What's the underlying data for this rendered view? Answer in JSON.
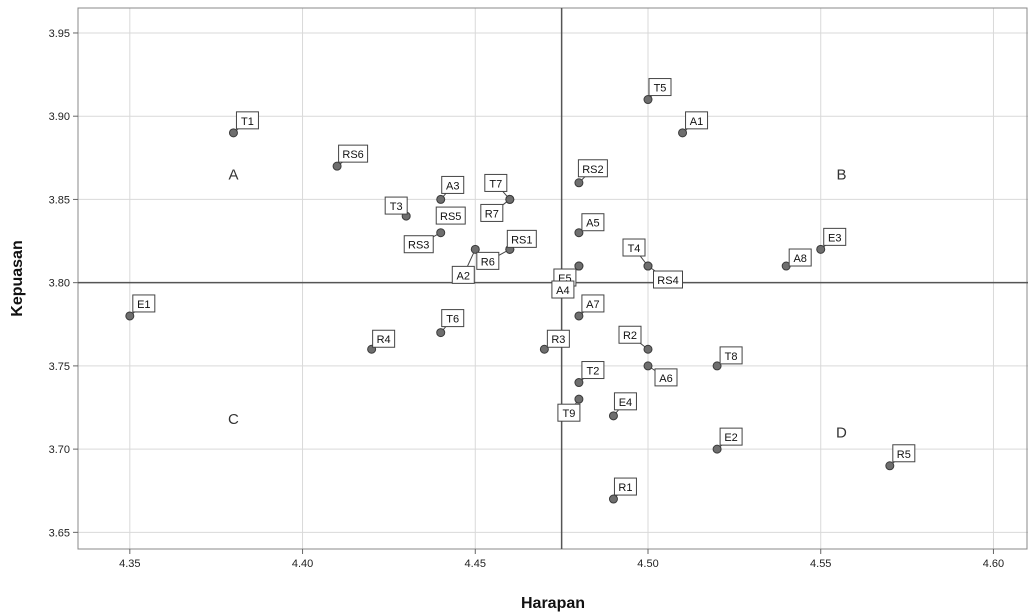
{
  "chart_data": {
    "type": "scatter",
    "xlabel": "Harapan",
    "ylabel": "Kepuasan",
    "xlim": [
      4.335,
      4.61
    ],
    "ylim": [
      3.64,
      3.965
    ],
    "xticks": [
      "4.35",
      "4.40",
      "4.45",
      "4.50",
      "4.55",
      "4.60"
    ],
    "yticks": [
      "3.65",
      "3.70",
      "3.75",
      "3.80",
      "3.85",
      "3.90",
      "3.95"
    ],
    "grid": true,
    "reference_lines": {
      "x": 4.475,
      "y": 3.8
    },
    "quadrant_labels": [
      {
        "text": "A",
        "x": 4.38,
        "y": 3.865
      },
      {
        "text": "B",
        "x": 4.556,
        "y": 3.865
      },
      {
        "text": "C",
        "x": 4.38,
        "y": 3.718
      },
      {
        "text": "D",
        "x": 4.556,
        "y": 3.71
      }
    ],
    "colors": {
      "point": "#6e6e6e",
      "point_edge": "#3a3a3a",
      "grid": "#d9d9d9",
      "refline": "#555555",
      "label_border": "#444444"
    },
    "points": [
      {
        "label": "T1",
        "x": 4.38,
        "y": 3.89
      },
      {
        "label": "RS6",
        "x": 4.41,
        "y": 3.87
      },
      {
        "label": "A3",
        "x": 4.44,
        "y": 3.85
      },
      {
        "label": "T3",
        "x": 4.43,
        "y": 3.84
      },
      {
        "label": "RS5",
        "x": 4.44,
        "y": 3.84
      },
      {
        "label": "RS3",
        "x": 4.44,
        "y": 3.83
      },
      {
        "label": "A2",
        "x": 4.45,
        "y": 3.82
      },
      {
        "label": "T7",
        "x": 4.46,
        "y": 3.85
      },
      {
        "label": "R7",
        "x": 4.46,
        "y": 3.85
      },
      {
        "label": "RS1",
        "x": 4.46,
        "y": 3.82
      },
      {
        "label": "R6",
        "x": 4.46,
        "y": 3.82
      },
      {
        "label": "T5",
        "x": 4.5,
        "y": 3.91
      },
      {
        "label": "A1",
        "x": 4.51,
        "y": 3.89
      },
      {
        "label": "RS2",
        "x": 4.48,
        "y": 3.86
      },
      {
        "label": "A5",
        "x": 4.48,
        "y": 3.83
      },
      {
        "label": "E5",
        "x": 4.48,
        "y": 3.81
      },
      {
        "label": "A4",
        "x": 4.48,
        "y": 3.81
      },
      {
        "label": "T4",
        "x": 4.5,
        "y": 3.81
      },
      {
        "label": "RS4",
        "x": 4.5,
        "y": 3.81
      },
      {
        "label": "A8",
        "x": 4.54,
        "y": 3.81
      },
      {
        "label": "E3",
        "x": 4.55,
        "y": 3.82
      },
      {
        "label": "E1",
        "x": 4.35,
        "y": 3.78
      },
      {
        "label": "T6",
        "x": 4.44,
        "y": 3.77
      },
      {
        "label": "R4",
        "x": 4.42,
        "y": 3.76
      },
      {
        "label": "R3",
        "x": 4.47,
        "y": 3.76
      },
      {
        "label": "A7",
        "x": 4.48,
        "y": 3.78
      },
      {
        "label": "R2",
        "x": 4.5,
        "y": 3.76
      },
      {
        "label": "A6",
        "x": 4.5,
        "y": 3.75
      },
      {
        "label": "T2",
        "x": 4.48,
        "y": 3.74
      },
      {
        "label": "T9",
        "x": 4.48,
        "y": 3.73
      },
      {
        "label": "E4",
        "x": 4.49,
        "y": 3.72
      },
      {
        "label": "T8",
        "x": 4.52,
        "y": 3.75
      },
      {
        "label": "E2",
        "x": 4.52,
        "y": 3.7
      },
      {
        "label": "R1",
        "x": 4.49,
        "y": 3.67
      },
      {
        "label": "R5",
        "x": 4.57,
        "y": 3.69
      }
    ]
  }
}
